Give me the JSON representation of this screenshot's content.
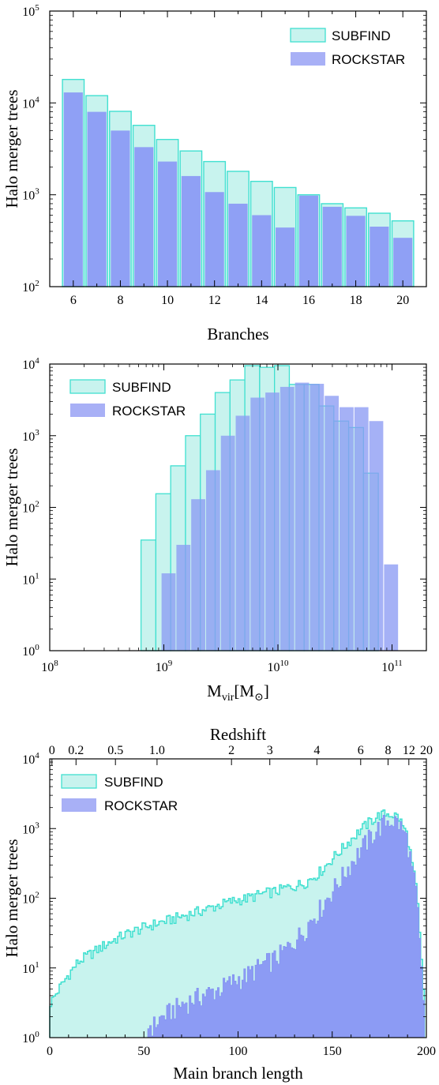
{
  "colors": {
    "subfind_fill": "#c8f3ee",
    "subfind_edge": "#40e0d0",
    "rockstar_fill": "#8c9bf4"
  },
  "chart_data": [
    {
      "type": "bar",
      "xlabel": "Branches",
      "ylabel": "Halo merger trees",
      "yscale": "log",
      "ylim": [
        100,
        100000
      ],
      "xlim": [
        5,
        21
      ],
      "xticks": [
        "6",
        "8",
        "10",
        "12",
        "14",
        "16",
        "18",
        "20"
      ],
      "yticks": [
        "10^2",
        "10^3",
        "10^4",
        "10^5"
      ],
      "legend_position": "upper-right",
      "x": [
        6,
        7,
        8,
        9,
        10,
        11,
        12,
        13,
        14,
        15,
        16,
        17,
        18,
        19,
        20
      ],
      "series": [
        {
          "name": "SUBFIND",
          "values": [
            18000,
            12000,
            8100,
            5700,
            4000,
            3000,
            2300,
            1800,
            1400,
            1200,
            1000,
            800,
            720,
            630,
            520
          ]
        },
        {
          "name": "ROCKSTAR",
          "values": [
            13000,
            8000,
            5000,
            3300,
            2300,
            1600,
            1070,
            800,
            600,
            440,
            980,
            740,
            590,
            450,
            340
          ]
        }
      ]
    },
    {
      "type": "bar",
      "xlabel": "M_vir [M_⊙]",
      "ylabel": "Halo merger trees",
      "xscale": "log",
      "yscale": "log",
      "xlim": [
        100000000.0,
        200000000000.0
      ],
      "ylim": [
        1,
        10000
      ],
      "xticks": [
        "10^8",
        "10^9",
        "10^10",
        "10^11"
      ],
      "yticks": [
        "10^0",
        "10^1",
        "10^2",
        "10^3",
        "10^4"
      ],
      "legend_position": "upper-left",
      "bin_edges_log10": [
        8.8,
        8.93,
        9.06,
        9.19,
        9.32,
        9.45,
        9.58,
        9.71,
        9.84,
        9.97,
        10.1,
        10.23,
        10.36,
        10.49,
        10.62,
        10.75,
        10.88,
        11.01
      ],
      "series": [
        {
          "name": "SUBFIND",
          "values": [
            35,
            155,
            380,
            1000,
            2000,
            4000,
            6000,
            9500,
            9000,
            9500,
            5200,
            5200,
            2600,
            1600,
            1300,
            300,
            0
          ]
        },
        {
          "name": "ROCKSTAR",
          "values": [
            0,
            12,
            30,
            130,
            330,
            1000,
            1900,
            3400,
            4000,
            4800,
            5500,
            5300,
            3600,
            2500,
            2500,
            1600,
            16
          ]
        }
      ]
    },
    {
      "type": "area",
      "xlabel": "Main branch length",
      "x2label": "Redshift",
      "ylabel": "Halo merger trees",
      "yscale": "log",
      "xlim": [
        0,
        200
      ],
      "ylim": [
        1,
        10000
      ],
      "xticks": [
        "0",
        "50",
        "100",
        "150",
        "200"
      ],
      "x2ticks": [
        "0",
        "0.2",
        "0.5",
        "1.0",
        "2",
        "3",
        "4",
        "6",
        "8",
        "12",
        "20"
      ],
      "yticks": [
        "10^0",
        "10^1",
        "10^2",
        "10^3",
        "10^4"
      ],
      "legend_position": "upper-left",
      "x": [
        0,
        5,
        10,
        15,
        20,
        25,
        30,
        35,
        40,
        45,
        50,
        55,
        60,
        65,
        70,
        75,
        80,
        85,
        90,
        95,
        100,
        105,
        110,
        115,
        120,
        125,
        130,
        135,
        140,
        145,
        150,
        155,
        160,
        165,
        170,
        175,
        180,
        185,
        190,
        195,
        199
      ],
      "series": [
        {
          "name": "SUBFIND",
          "values": [
            3,
            5,
            8,
            12,
            15,
            18,
            22,
            26,
            30,
            34,
            38,
            42,
            46,
            50,
            55,
            60,
            66,
            72,
            80,
            88,
            95,
            100,
            110,
            120,
            125,
            140,
            150,
            165,
            200,
            260,
            370,
            500,
            700,
            950,
            1250,
            1550,
            1650,
            1500,
            800,
            120,
            3
          ]
        },
        {
          "name": "ROCKSTAR",
          "values": [
            0,
            0,
            0,
            0,
            0,
            0,
            0,
            0,
            0,
            0,
            0,
            1.5,
            2,
            2.5,
            3,
            3.5,
            4,
            4.5,
            5,
            6,
            7,
            8,
            10,
            12,
            14,
            18,
            25,
            35,
            55,
            80,
            130,
            200,
            320,
            500,
            750,
            1050,
            1350,
            1250,
            700,
            100,
            2
          ]
        }
      ]
    }
  ]
}
